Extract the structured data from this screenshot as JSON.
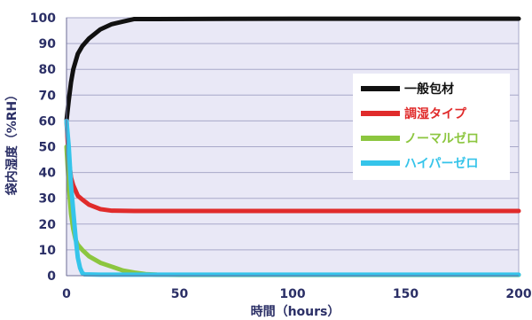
{
  "chart_data": {
    "type": "line",
    "title": "",
    "xlabel": "時間（hours）",
    "ylabel": "袋内湿度（%RH）",
    "xlim": [
      0,
      200
    ],
    "ylim": [
      0,
      100
    ],
    "xticks": [
      0,
      50,
      100,
      150,
      200
    ],
    "yticks": [
      0,
      10,
      20,
      30,
      40,
      50,
      60,
      70,
      80,
      90,
      100
    ],
    "grid": "horizontal",
    "legend_position": "right",
    "plot_background": "#e9e8f6",
    "series": [
      {
        "name": "一般包材",
        "color": "#111111",
        "label_color": "#111111",
        "points": [
          [
            0,
            60
          ],
          [
            1,
            68
          ],
          [
            2,
            75
          ],
          [
            3,
            80
          ],
          [
            5,
            86
          ],
          [
            7,
            89
          ],
          [
            10,
            92
          ],
          [
            15,
            95.5
          ],
          [
            20,
            97.5
          ],
          [
            25,
            98.5
          ],
          [
            30,
            99.5
          ],
          [
            40,
            99.5
          ],
          [
            100,
            99.6
          ],
          [
            200,
            99.6
          ]
        ]
      },
      {
        "name": "調湿タイプ",
        "color": "#e02b2b",
        "label_color": "#e02b2b",
        "points": [
          [
            0,
            60
          ],
          [
            1,
            45
          ],
          [
            2,
            38
          ],
          [
            3,
            35
          ],
          [
            5,
            31
          ],
          [
            7,
            29.5
          ],
          [
            10,
            27.5
          ],
          [
            15,
            25.8
          ],
          [
            20,
            25.2
          ],
          [
            30,
            25.1
          ],
          [
            100,
            25.1
          ],
          [
            200,
            25.1
          ]
        ]
      },
      {
        "name": "ノーマルゼロ",
        "color": "#8cc63f",
        "label_color": "#8cc63f",
        "points": [
          [
            0,
            50
          ],
          [
            1,
            35
          ],
          [
            2,
            24
          ],
          [
            3,
            18
          ],
          [
            4,
            14
          ],
          [
            5,
            12
          ],
          [
            7,
            10
          ],
          [
            10,
            7.5
          ],
          [
            15,
            5
          ],
          [
            20,
            3.5
          ],
          [
            25,
            2
          ],
          [
            30,
            1.2
          ],
          [
            35,
            0.6
          ],
          [
            40,
            0.4
          ],
          [
            50,
            0.3
          ],
          [
            200,
            0.3
          ]
        ]
      },
      {
        "name": "ハイパーゼロ",
        "color": "#35c4ea",
        "label_color": "#35c4ea",
        "points": [
          [
            0,
            60
          ],
          [
            1,
            50
          ],
          [
            2,
            35
          ],
          [
            3,
            25
          ],
          [
            4,
            15
          ],
          [
            5,
            7
          ],
          [
            6,
            3
          ],
          [
            7,
            1
          ],
          [
            8,
            0.5
          ],
          [
            15,
            0.4
          ],
          [
            200,
            0.4
          ]
        ]
      }
    ]
  }
}
